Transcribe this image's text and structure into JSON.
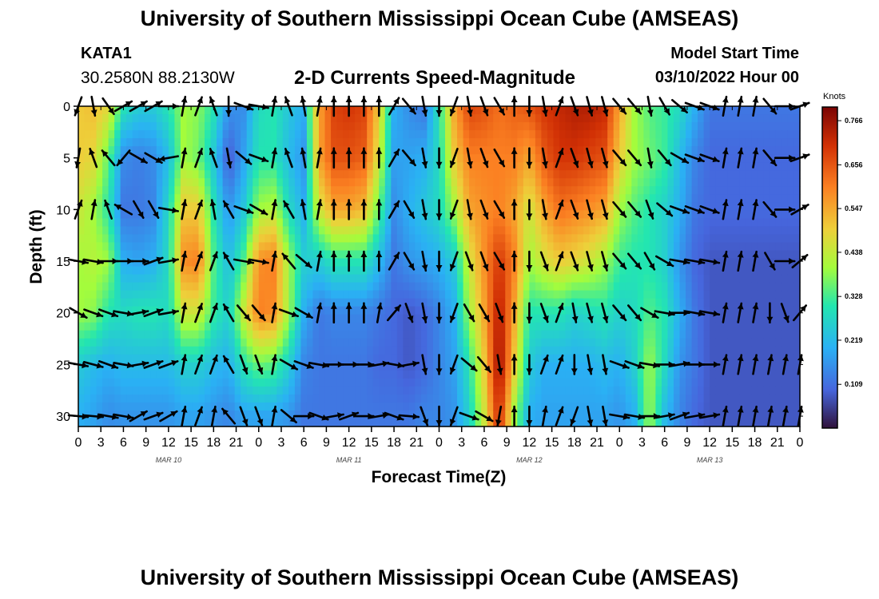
{
  "header": {
    "title": "University of Southern Mississippi Ocean Cube (AMSEAS)",
    "station_id": "KATA1",
    "station_coords": "30.2580N  88.2130W",
    "subtitle": "2-D Currents Speed-Magnitude",
    "model_start_label": "Model Start Time",
    "model_start_value": "03/10/2022 Hour 00"
  },
  "footer": {
    "title": "University of Southern Mississippi Ocean Cube (AMSEAS)"
  },
  "chart_data": {
    "type": "heatmap",
    "title": "2-D Currents Speed-Magnitude",
    "xlabel": "Forecast Time(Z)",
    "ylabel": "Depth (ft)",
    "x_tick_labels": [
      "0",
      "3",
      "6",
      "9",
      "12",
      "15",
      "18",
      "21",
      "0",
      "3",
      "6",
      "9",
      "12",
      "15",
      "18",
      "21",
      "0",
      "3",
      "6",
      "9",
      "12",
      "15",
      "18",
      "21",
      "0",
      "3",
      "6",
      "9",
      "12",
      "15",
      "18",
      "21",
      "0"
    ],
    "x_range_hours": [
      0,
      96
    ],
    "date_labels": [
      {
        "text": "MAR 10",
        "hour": 12
      },
      {
        "text": "MAR 11",
        "hour": 36
      },
      {
        "text": "MAR 12",
        "hour": 60
      },
      {
        "text": "MAR 13",
        "hour": 84
      }
    ],
    "y_ticks": [
      "0",
      "5",
      "10",
      "15",
      "20",
      "25",
      "30"
    ],
    "y_range": [
      0,
      31
    ],
    "y_inverted": true,
    "colorbar": {
      "label": "Knots",
      "ticks": [
        "0.766",
        "0.656",
        "0.547",
        "0.438",
        "0.328",
        "0.219",
        "0.109"
      ],
      "range": [
        0.0,
        0.8
      ]
    },
    "speed_profile": {
      "time_hours": [
        0,
        2,
        4,
        6,
        8,
        10,
        12,
        14,
        16,
        18,
        20,
        22,
        24,
        26,
        28,
        30,
        32,
        34,
        36,
        38,
        40,
        42,
        44,
        46,
        48,
        50,
        52,
        54,
        56,
        58,
        60,
        62,
        64,
        66,
        68,
        70,
        72,
        74,
        76,
        78,
        80,
        82,
        84,
        86,
        88,
        90,
        92,
        94,
        96
      ],
      "depth_ft": [
        0,
        5,
        10,
        15,
        20,
        25,
        30
      ],
      "knots": [
        [
          0.5,
          0.5,
          0.45,
          0.4,
          0.4,
          0.25,
          0.2
        ],
        [
          0.52,
          0.48,
          0.4,
          0.42,
          0.38,
          0.22,
          0.18
        ],
        [
          0.48,
          0.35,
          0.3,
          0.4,
          0.3,
          0.2,
          0.15
        ],
        [
          0.3,
          0.15,
          0.12,
          0.2,
          0.28,
          0.22,
          0.16
        ],
        [
          0.25,
          0.13,
          0.12,
          0.18,
          0.3,
          0.22,
          0.16
        ],
        [
          0.25,
          0.15,
          0.14,
          0.2,
          0.3,
          0.22,
          0.16
        ],
        [
          0.3,
          0.22,
          0.28,
          0.28,
          0.28,
          0.22,
          0.16
        ],
        [
          0.4,
          0.4,
          0.5,
          0.58,
          0.45,
          0.26,
          0.18
        ],
        [
          0.38,
          0.36,
          0.5,
          0.6,
          0.45,
          0.26,
          0.18
        ],
        [
          0.3,
          0.24,
          0.3,
          0.34,
          0.32,
          0.22,
          0.16
        ],
        [
          0.16,
          0.08,
          0.16,
          0.22,
          0.26,
          0.2,
          0.14
        ],
        [
          0.15,
          0.18,
          0.24,
          0.34,
          0.45,
          0.3,
          0.18
        ],
        [
          0.28,
          0.3,
          0.4,
          0.58,
          0.6,
          0.36,
          0.18
        ],
        [
          0.3,
          0.3,
          0.42,
          0.6,
          0.58,
          0.34,
          0.18
        ],
        [
          0.24,
          0.22,
          0.28,
          0.4,
          0.4,
          0.26,
          0.16
        ],
        [
          0.2,
          0.16,
          0.2,
          0.26,
          0.2,
          0.14,
          0.12
        ],
        [
          0.55,
          0.55,
          0.45,
          0.25,
          0.12,
          0.12,
          0.12
        ],
        [
          0.68,
          0.66,
          0.55,
          0.3,
          0.14,
          0.12,
          0.12
        ],
        [
          0.7,
          0.66,
          0.55,
          0.3,
          0.14,
          0.12,
          0.12
        ],
        [
          0.68,
          0.64,
          0.52,
          0.3,
          0.14,
          0.12,
          0.12
        ],
        [
          0.5,
          0.45,
          0.35,
          0.22,
          0.12,
          0.1,
          0.12
        ],
        [
          0.2,
          0.18,
          0.15,
          0.12,
          0.1,
          0.1,
          0.12
        ],
        [
          0.15,
          0.18,
          0.2,
          0.16,
          0.08,
          0.08,
          0.12
        ],
        [
          0.12,
          0.2,
          0.24,
          0.18,
          0.1,
          0.1,
          0.14
        ],
        [
          0.3,
          0.28,
          0.28,
          0.2,
          0.14,
          0.14,
          0.14
        ],
        [
          0.55,
          0.5,
          0.4,
          0.25,
          0.2,
          0.18,
          0.16
        ],
        [
          0.68,
          0.6,
          0.55,
          0.45,
          0.4,
          0.3,
          0.26
        ],
        [
          0.66,
          0.6,
          0.58,
          0.58,
          0.55,
          0.5,
          0.45
        ],
        [
          0.62,
          0.6,
          0.6,
          0.7,
          0.75,
          0.78,
          0.72
        ],
        [
          0.64,
          0.6,
          0.55,
          0.6,
          0.55,
          0.5,
          0.4
        ],
        [
          0.66,
          0.55,
          0.45,
          0.4,
          0.3,
          0.25,
          0.2
        ],
        [
          0.7,
          0.65,
          0.55,
          0.46,
          0.3,
          0.2,
          0.18
        ],
        [
          0.72,
          0.7,
          0.62,
          0.5,
          0.3,
          0.2,
          0.18
        ],
        [
          0.74,
          0.7,
          0.6,
          0.48,
          0.26,
          0.2,
          0.18
        ],
        [
          0.74,
          0.68,
          0.58,
          0.45,
          0.28,
          0.2,
          0.18
        ],
        [
          0.72,
          0.66,
          0.55,
          0.4,
          0.3,
          0.22,
          0.18
        ],
        [
          0.55,
          0.5,
          0.4,
          0.32,
          0.26,
          0.2,
          0.16
        ],
        [
          0.4,
          0.4,
          0.34,
          0.3,
          0.28,
          0.26,
          0.2
        ],
        [
          0.34,
          0.36,
          0.3,
          0.3,
          0.34,
          0.4,
          0.4
        ],
        [
          0.32,
          0.32,
          0.26,
          0.26,
          0.3,
          0.28,
          0.22
        ],
        [
          0.28,
          0.22,
          0.2,
          0.16,
          0.2,
          0.16,
          0.14
        ],
        [
          0.2,
          0.14,
          0.12,
          0.1,
          0.12,
          0.12,
          0.1
        ],
        [
          0.12,
          0.1,
          0.1,
          0.08,
          0.08,
          0.08,
          0.08
        ],
        [
          0.12,
          0.1,
          0.1,
          0.08,
          0.08,
          0.08,
          0.08
        ],
        [
          0.12,
          0.1,
          0.1,
          0.08,
          0.08,
          0.08,
          0.08
        ],
        [
          0.12,
          0.1,
          0.1,
          0.08,
          0.08,
          0.08,
          0.08
        ],
        [
          0.12,
          0.1,
          0.1,
          0.08,
          0.08,
          0.08,
          0.08
        ],
        [
          0.12,
          0.1,
          0.1,
          0.08,
          0.08,
          0.08,
          0.08
        ],
        [
          0.12,
          0.1,
          0.1,
          0.08,
          0.08,
          0.08,
          0.08
        ]
      ]
    },
    "current_vectors": {
      "time_hours": [
        0,
        2,
        4,
        6,
        8,
        10,
        12,
        14,
        16,
        18,
        20,
        22,
        24,
        26,
        28,
        30,
        32,
        34,
        36,
        38,
        40,
        42,
        44,
        46,
        48,
        50,
        52,
        54,
        56,
        58,
        60,
        62,
        64,
        66,
        68,
        70,
        72,
        74,
        76,
        78,
        80,
        82,
        84,
        86,
        88,
        90,
        92,
        94,
        96
      ],
      "depth_ft": [
        0,
        5,
        10,
        15,
        20,
        25,
        30
      ],
      "direction_deg": [
        [
          200,
          190,
          20,
          100,
          120,
          100,
          95
        ],
        [
          170,
          340,
          10,
          100,
          110,
          105,
          95
        ],
        [
          145,
          320,
          340,
          90,
          110,
          110,
          100
        ],
        [
          60,
          220,
          300,
          90,
          100,
          100,
          100
        ],
        [
          60,
          120,
          150,
          90,
          80,
          80,
          60
        ],
        [
          60,
          120,
          150,
          70,
          70,
          70,
          70
        ],
        [
          90,
          260,
          100,
          80,
          80,
          70,
          60
        ],
        [
          10,
          10,
          10,
          10,
          10,
          10,
          10
        ],
        [
          20,
          20,
          20,
          20,
          20,
          20,
          20
        ],
        [
          340,
          340,
          350,
          20,
          20,
          20,
          10
        ],
        [
          180,
          170,
          330,
          330,
          330,
          330,
          320
        ],
        [
          110,
          130,
          110,
          100,
          140,
          160,
          160
        ],
        [
          100,
          110,
          120,
          100,
          140,
          160,
          160
        ],
        [
          10,
          10,
          10,
          10,
          10,
          10,
          10
        ],
        [
          340,
          340,
          330,
          320,
          110,
          120,
          130
        ],
        [
          350,
          350,
          350,
          130,
          120,
          110,
          90
        ],
        [
          10,
          10,
          10,
          10,
          10,
          100,
          110
        ],
        [
          0,
          0,
          0,
          0,
          0,
          90,
          80
        ],
        [
          0,
          0,
          0,
          0,
          0,
          90,
          70
        ],
        [
          0,
          0,
          0,
          0,
          0,
          90,
          90
        ],
        [
          0,
          0,
          0,
          0,
          10,
          80,
          80
        ],
        [
          30,
          30,
          30,
          30,
          40,
          100,
          110
        ],
        [
          140,
          140,
          150,
          150,
          160,
          80,
          95
        ],
        [
          170,
          170,
          170,
          170,
          170,
          170,
          160
        ],
        [
          180,
          180,
          180,
          180,
          180,
          180,
          180
        ],
        [
          200,
          200,
          200,
          200,
          200,
          200,
          200
        ],
        [
          170,
          170,
          170,
          160,
          150,
          130,
          110
        ],
        [
          160,
          160,
          160,
          160,
          150,
          140,
          120
        ],
        [
          150,
          150,
          150,
          150,
          160,
          170,
          190
        ],
        [
          0,
          0,
          0,
          0,
          0,
          0,
          0
        ],
        [
          180,
          180,
          180,
          180,
          180,
          180,
          180
        ],
        [
          170,
          170,
          170,
          160,
          160,
          20,
          10
        ],
        [
          20,
          20,
          20,
          20,
          20,
          20,
          20
        ],
        [
          160,
          160,
          160,
          160,
          170,
          180,
          200
        ],
        [
          165,
          165,
          165,
          165,
          165,
          170,
          170
        ],
        [
          165,
          165,
          165,
          165,
          165,
          170,
          170
        ],
        [
          140,
          140,
          140,
          140,
          140,
          110,
          100
        ],
        [
          140,
          140,
          140,
          140,
          140,
          110,
          100
        ],
        [
          170,
          170,
          160,
          150,
          120,
          100,
          90
        ],
        [
          150,
          140,
          130,
          120,
          100,
          90,
          80
        ],
        [
          130,
          120,
          110,
          100,
          90,
          80,
          70
        ],
        [
          110,
          110,
          110,
          100,
          100,
          90,
          80
        ],
        [
          110,
          110,
          110,
          100,
          100,
          90,
          80
        ],
        [
          10,
          10,
          10,
          10,
          10,
          10,
          10
        ],
        [
          10,
          10,
          10,
          10,
          10,
          10,
          10
        ],
        [
          10,
          10,
          10,
          10,
          10,
          10,
          10
        ],
        [
          140,
          140,
          140,
          150,
          180,
          10,
          10
        ],
        [
          90,
          90,
          90,
          90,
          160,
          10,
          10
        ],
        [
          70,
          70,
          60,
          50,
          40,
          10,
          10
        ]
      ]
    }
  }
}
